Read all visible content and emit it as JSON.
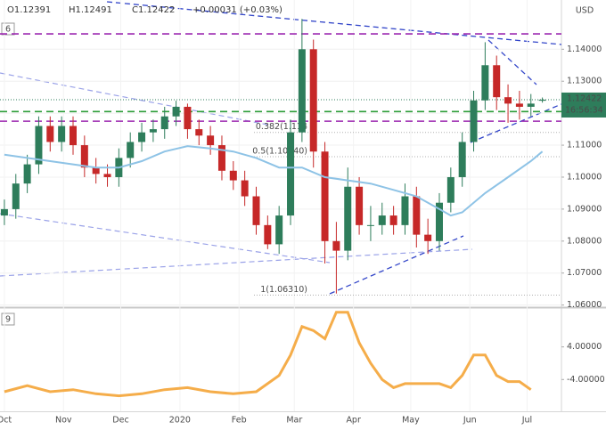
{
  "chart_data": [
    {
      "type": "candlestick",
      "header": {
        "open": "O1.12391",
        "high": "H1.12491",
        "close": "C1.12422",
        "change": "+0.00031 (+0.03%)"
      },
      "pane_label": "6",
      "currency": "USD",
      "countdown": "16:56:34",
      "last_price": {
        "value": 1.12422,
        "label": "1.12422"
      },
      "x": [
        0,
        6,
        12,
        18,
        24,
        30,
        36,
        42,
        48,
        54,
        60,
        66,
        72,
        78,
        84,
        90,
        96,
        102,
        108,
        114,
        120,
        126,
        132,
        138,
        144,
        150,
        156,
        162,
        168,
        174,
        180,
        186,
        192,
        198,
        204,
        210,
        216,
        222,
        228,
        234,
        240,
        246,
        252,
        258,
        264,
        270,
        276,
        282
      ],
      "open": [
        1.088,
        1.09,
        1.098,
        1.104,
        1.116,
        1.111,
        1.116,
        1.11,
        1.103,
        1.101,
        1.1,
        1.106,
        1.111,
        1.114,
        1.115,
        1.119,
        1.122,
        1.115,
        1.113,
        1.11,
        1.102,
        1.099,
        1.094,
        1.085,
        1.079,
        1.088,
        1.114,
        1.14,
        1.108,
        1.08,
        1.077,
        1.097,
        1.085,
        1.085,
        1.088,
        1.085,
        1.094,
        1.082,
        1.08,
        1.092,
        1.1,
        1.111,
        1.124,
        1.135,
        1.125,
        1.123,
        1.122,
        1.1239
      ],
      "high": [
        1.093,
        1.101,
        1.107,
        1.119,
        1.119,
        1.119,
        1.119,
        1.113,
        1.106,
        1.104,
        1.109,
        1.114,
        1.117,
        1.118,
        1.122,
        1.1239,
        1.123,
        1.118,
        1.116,
        1.113,
        1.105,
        1.102,
        1.097,
        1.088,
        1.091,
        1.118,
        1.1495,
        1.143,
        1.111,
        1.086,
        1.103,
        1.1,
        1.091,
        1.092,
        1.091,
        1.098,
        1.097,
        1.087,
        1.095,
        1.103,
        1.114,
        1.127,
        1.1422,
        1.138,
        1.129,
        1.127,
        1.126,
        1.1249
      ],
      "low": [
        1.085,
        1.087,
        1.095,
        1.101,
        1.108,
        1.108,
        1.107,
        1.1,
        1.098,
        1.097,
        1.097,
        1.103,
        1.108,
        1.111,
        1.112,
        1.116,
        1.112,
        1.11,
        1.107,
        1.099,
        1.096,
        1.091,
        1.082,
        1.0775,
        1.076,
        1.085,
        1.111,
        1.103,
        1.073,
        1.0636,
        1.074,
        1.082,
        1.08,
        1.082,
        1.082,
        1.082,
        1.078,
        1.076,
        1.077,
        1.089,
        1.097,
        1.108,
        1.121,
        1.121,
        1.117,
        1.118,
        1.119,
        1.1233
      ],
      "close": [
        1.09,
        1.098,
        1.104,
        1.116,
        1.111,
        1.116,
        1.11,
        1.103,
        1.101,
        1.1,
        1.106,
        1.111,
        1.114,
        1.115,
        1.119,
        1.122,
        1.115,
        1.113,
        1.11,
        1.102,
        1.099,
        1.094,
        1.085,
        1.079,
        1.088,
        1.114,
        1.14,
        1.108,
        1.08,
        1.077,
        1.097,
        1.085,
        1.085,
        1.088,
        1.085,
        1.094,
        1.082,
        1.08,
        1.092,
        1.1,
        1.111,
        1.124,
        1.135,
        1.125,
        1.123,
        1.122,
        1.123,
        1.12422
      ],
      "up_color": "#2e7d5b",
      "down_color": "#c62828",
      "ma": {
        "color": "#8ec3e6",
        "x": [
          0,
          12,
          24,
          36,
          48,
          60,
          72,
          84,
          96,
          108,
          120,
          132,
          144,
          156,
          168,
          180,
          192,
          204,
          216,
          228,
          234,
          240,
          252,
          264,
          276,
          282
        ],
        "values": [
          1.107,
          1.106,
          1.105,
          1.104,
          1.103,
          1.103,
          1.105,
          1.108,
          1.1097,
          1.109,
          1.108,
          1.106,
          1.103,
          1.103,
          1.1,
          1.099,
          1.098,
          1.096,
          1.094,
          1.09,
          1.088,
          1.089,
          1.095,
          1.1,
          1.105,
          1.108
        ]
      },
      "levels": [
        {
          "value": 1.1448,
          "color": "#9c27b0"
        },
        {
          "value": 1.1205,
          "color": "#2e9e3a"
        },
        {
          "value": 1.1175,
          "color": "#9c27b0"
        }
      ],
      "fib_levels": [
        {
          "value": 1.114,
          "label": "0.382(1.114"
        },
        {
          "value": 1.1064,
          "label": "0.5(1.10640)"
        },
        {
          "value": 1.0631,
          "label": "1(1.06310)"
        }
      ],
      "xlim": [
        -2.3,
        292
      ],
      "ylim": [
        1.0599,
        1.1554
      ],
      "xticks": [
        {
          "value": 0,
          "label": "Oct"
        },
        {
          "value": 31,
          "label": "Nov"
        },
        {
          "value": 61,
          "label": "Dec"
        },
        {
          "value": 92,
          "label": "2020"
        },
        {
          "value": 123,
          "label": "Feb"
        },
        {
          "value": 152,
          "label": "Mar"
        },
        {
          "value": 183,
          "label": "Apr"
        },
        {
          "value": 213,
          "label": "May"
        },
        {
          "value": 244,
          "label": "Jun"
        },
        {
          "value": 274,
          "label": "Jul"
        }
      ],
      "yticks": [
        {
          "value": 1.06,
          "label": "1.06000"
        },
        {
          "value": 1.07,
          "label": "1.07000"
        },
        {
          "value": 1.08,
          "label": "1.08000"
        },
        {
          "value": 1.09,
          "label": "1.09000"
        },
        {
          "value": 1.1,
          "label": "1.10000"
        },
        {
          "value": 1.11,
          "label": "1.11000"
        },
        {
          "value": 1.12,
          "label": "1.12000"
        },
        {
          "value": 1.13,
          "label": "1.13000"
        },
        {
          "value": 1.14,
          "label": "1.14000"
        }
      ]
    },
    {
      "type": "line",
      "pane_label": "9",
      "color": "#f5ad4a",
      "x": [
        0,
        12,
        24,
        36,
        48,
        60,
        72,
        84,
        96,
        108,
        120,
        132,
        144,
        150,
        156,
        162,
        168,
        174,
        180,
        186,
        192,
        198,
        204,
        210,
        216,
        222,
        228,
        234,
        240,
        246,
        252,
        258,
        264,
        270,
        276
      ],
      "values": [
        -7,
        -5.5,
        -7,
        -6.5,
        -7.5,
        -8,
        -7.5,
        -6.5,
        -6,
        -7,
        -7.5,
        -7,
        -3,
        2,
        9,
        8,
        6,
        12.5,
        12.5,
        5,
        0,
        -4,
        -6,
        -5,
        -5,
        -5,
        -5,
        -6,
        -3,
        2,
        2,
        -3,
        -4.5,
        -4.5,
        -6.5
      ],
      "xlim": [
        -2.3,
        292
      ],
      "ylim": [
        -11.8,
        13.1
      ],
      "yticks": [
        {
          "value": 4,
          "label": "4.00000"
        },
        {
          "value": -4,
          "label": "-4.00000"
        }
      ]
    }
  ]
}
